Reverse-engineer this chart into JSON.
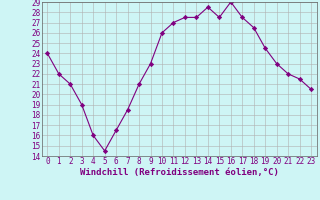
{
  "x": [
    0,
    1,
    2,
    3,
    4,
    5,
    6,
    7,
    8,
    9,
    10,
    11,
    12,
    13,
    14,
    15,
    16,
    17,
    18,
    19,
    20,
    21,
    22,
    23
  ],
  "y": [
    24,
    22,
    21,
    19,
    16,
    14.5,
    16.5,
    18.5,
    21,
    23,
    26,
    27,
    27.5,
    27.5,
    28.5,
    27.5,
    29,
    27.5,
    26.5,
    24.5,
    23,
    22,
    21.5,
    20.5
  ],
  "line_color": "#800080",
  "marker": "D",
  "marker_size": 2.2,
  "bg_color": "#cef5f5",
  "grid_color": "#b0b0b0",
  "xlabel": "Windchill (Refroidissement éolien,°C)",
  "ylim": [
    14,
    29
  ],
  "xlim_min": -0.5,
  "xlim_max": 23.5,
  "yticks": [
    14,
    15,
    16,
    17,
    18,
    19,
    20,
    21,
    22,
    23,
    24,
    25,
    26,
    27,
    28,
    29
  ],
  "xticks": [
    0,
    1,
    2,
    3,
    4,
    5,
    6,
    7,
    8,
    9,
    10,
    11,
    12,
    13,
    14,
    15,
    16,
    17,
    18,
    19,
    20,
    21,
    22,
    23
  ],
  "label_fontsize": 6.5,
  "tick_fontsize": 5.5
}
